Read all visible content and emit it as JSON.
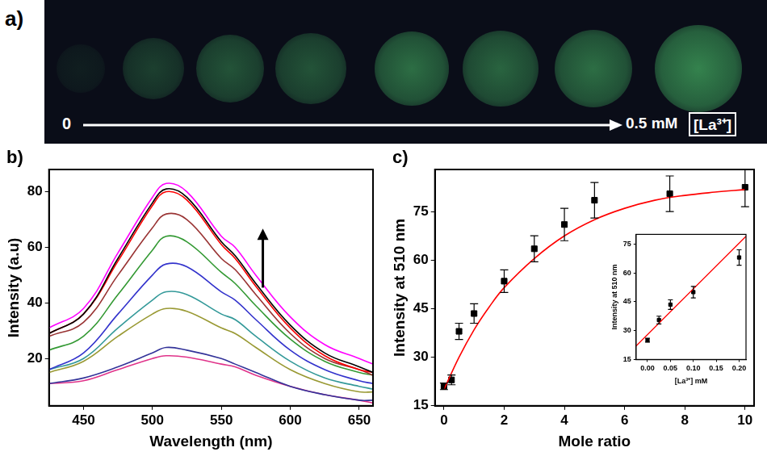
{
  "photo": {
    "panel_label": "a)",
    "start_label": "0",
    "end_label": "0.5 mM",
    "species_label": "[La³⁺]"
  },
  "chart_data": [
    {
      "type": "line",
      "panel_label": "b)",
      "x_label": "Wavelength (nm)",
      "y_label": "Intensity (a.u)",
      "x": [
        425,
        450,
        475,
        500,
        510,
        525,
        550,
        560,
        575,
        600,
        625,
        650,
        660
      ],
      "xlim": [
        425,
        660
      ],
      "xticks": [
        450,
        500,
        550,
        600,
        650
      ],
      "ylim": [
        3,
        88
      ],
      "yticks": [
        20,
        40,
        60,
        80
      ],
      "grid": false,
      "series": [
        {
          "color": "#ff00ff",
          "values": [
            31,
            38,
            58,
            78,
            83,
            80,
            64,
            60,
            50,
            35,
            25,
            20,
            18
          ]
        },
        {
          "color": "#000000",
          "values": [
            29,
            36,
            56,
            76,
            81,
            78,
            62,
            57,
            47,
            32,
            22,
            17,
            15
          ]
        },
        {
          "color": "#ff0000",
          "values": [
            29,
            36,
            55,
            75,
            80,
            77,
            61,
            56,
            46,
            31,
            21,
            16,
            15
          ]
        },
        {
          "color": "#993333",
          "values": [
            28,
            33,
            50,
            67,
            72,
            70,
            56,
            52,
            43,
            29,
            20,
            16,
            14
          ]
        },
        {
          "color": "#339933",
          "values": [
            23,
            28,
            43,
            59,
            64,
            62,
            51,
            47,
            39,
            27,
            19,
            15,
            14
          ]
        },
        {
          "color": "#3333cc",
          "values": [
            16,
            22,
            36,
            50,
            54,
            53,
            44,
            41,
            34,
            23,
            16,
            12,
            11
          ]
        },
        {
          "color": "#339999",
          "values": [
            16,
            20,
            31,
            41,
            44,
            43,
            36,
            34,
            28,
            19,
            13,
            10,
            9
          ]
        },
        {
          "color": "#999933",
          "values": [
            15,
            19,
            28,
            36,
            38,
            37,
            31,
            29,
            24,
            16,
            11,
            8,
            8
          ]
        },
        {
          "color": "#333399",
          "values": [
            11,
            13,
            17,
            22,
            24,
            23,
            20,
            18,
            15,
            10,
            7,
            5,
            5
          ]
        },
        {
          "color": "#e0338a",
          "values": [
            11,
            12,
            16,
            20,
            21,
            20.5,
            18,
            17,
            14,
            10,
            7,
            5,
            4
          ]
        }
      ]
    },
    {
      "type": "scatter",
      "panel_label": "c)",
      "x_label": "Mole ratio",
      "y_label": "Intensity at 510 nm",
      "xlim": [
        -0.3,
        10.3
      ],
      "xticks": [
        0,
        2,
        4,
        6,
        8,
        10
      ],
      "ylim": [
        15,
        88
      ],
      "yticks": [
        15,
        30,
        45,
        60,
        75
      ],
      "grid": false,
      "series": [
        {
          "type": "line",
          "color": "#ff0000",
          "line_style": "solid",
          "x": [
            0,
            0.5,
            1,
            1.5,
            2,
            3,
            4,
            5,
            6,
            7,
            8,
            9,
            10
          ],
          "values": [
            20,
            30,
            38.5,
            45.5,
            51.5,
            60.5,
            67.5,
            72.5,
            76,
            78.5,
            80,
            81,
            81.8
          ]
        },
        {
          "type": "scatter",
          "color": "#000000",
          "marker": "square",
          "x": [
            0,
            0.25,
            0.5,
            1,
            2,
            3,
            4,
            5,
            7.5,
            10
          ],
          "values": [
            21,
            23,
            38,
            43.5,
            53.5,
            63.5,
            71,
            78.5,
            80.5,
            82.5
          ],
          "errors": [
            1,
            1.5,
            2.5,
            3,
            3.5,
            4,
            5,
            5.5,
            5.5,
            6
          ]
        }
      ]
    },
    {
      "type": "scatter",
      "x_label": "[La³⁺] mM",
      "y_label": "Intensity at 510 nm",
      "xlim": [
        -0.025,
        0.215
      ],
      "xticks": [
        {
          "value": 0,
          "label": "0.00"
        },
        {
          "value": 0.05,
          "label": "0.05"
        },
        {
          "value": 0.1,
          "label": "0.10"
        },
        {
          "value": 0.15,
          "label": "0.15"
        },
        {
          "value": 0.2,
          "label": "0.20"
        }
      ],
      "ylim": [
        15,
        80
      ],
      "yticks": [
        15,
        30,
        45,
        60,
        75
      ],
      "grid": false,
      "series": [
        {
          "type": "line",
          "color": "#ff0000",
          "line_style": "solid",
          "x": [
            -0.025,
            0.215
          ],
          "values": [
            22,
            79
          ]
        },
        {
          "type": "scatter",
          "color": "#000000",
          "marker": "square",
          "x": [
            0,
            0.025,
            0.05,
            0.1,
            0.2
          ],
          "values": [
            25,
            35.5,
            43.5,
            50,
            68
          ],
          "errors": [
            1,
            2,
            2.5,
            3,
            4
          ]
        }
      ]
    }
  ]
}
